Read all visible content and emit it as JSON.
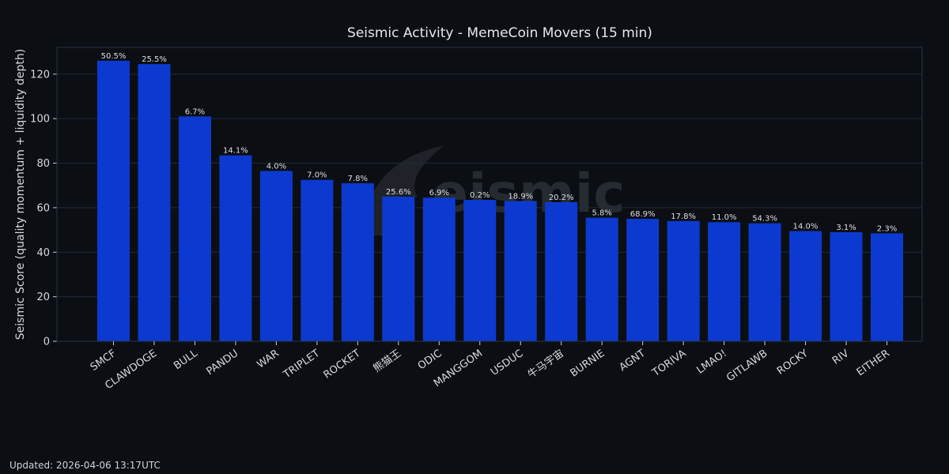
{
  "chart_data": {
    "type": "bar",
    "title": "Seismic Activity - MemeCoin Movers (15 min)",
    "xlabel": "",
    "ylabel": "Seismic Score (quality momentum + liquidity depth)",
    "ylim": [
      0,
      132
    ],
    "yticks": [
      0,
      20,
      40,
      60,
      80,
      100,
      120
    ],
    "grid": "horizontal",
    "bar_color": "#0c3ad0",
    "background": "#0b0e13",
    "categories": [
      "SMCF",
      "CLAWDOGE",
      "BULL",
      "PANDU",
      "WAR",
      "TRIPLET",
      "ROCKET",
      "熊猫王",
      "ODIC",
      "MANGGOM",
      "USDUC",
      "牛马宇宙",
      "BURNIE",
      "AGNT",
      "TORIVA",
      "LMAO!",
      "GITLAWB",
      "ROCKY",
      "RIV",
      "EITHER"
    ],
    "values": [
      126,
      124.5,
      101,
      83.5,
      76.5,
      72.5,
      71,
      65,
      64.5,
      63.5,
      63,
      62.5,
      55.5,
      55,
      54,
      53.5,
      53,
      49.5,
      49,
      48.5
    ],
    "data_labels": [
      "50.5%",
      "25.5%",
      "6.7%",
      "14.1%",
      "4.0%",
      "7.0%",
      "7.8%",
      "25.6%",
      "6.9%",
      "0.2%",
      "18.9%",
      "20.2%",
      "5.8%",
      "68.9%",
      "17.8%",
      "11.0%",
      "54.3%",
      "14.0%",
      "3.1%",
      "2.3%"
    ]
  },
  "watermark": {
    "text": "eismic"
  },
  "footer": {
    "updated": "Updated: 2026-04-06 13:17UTC"
  }
}
